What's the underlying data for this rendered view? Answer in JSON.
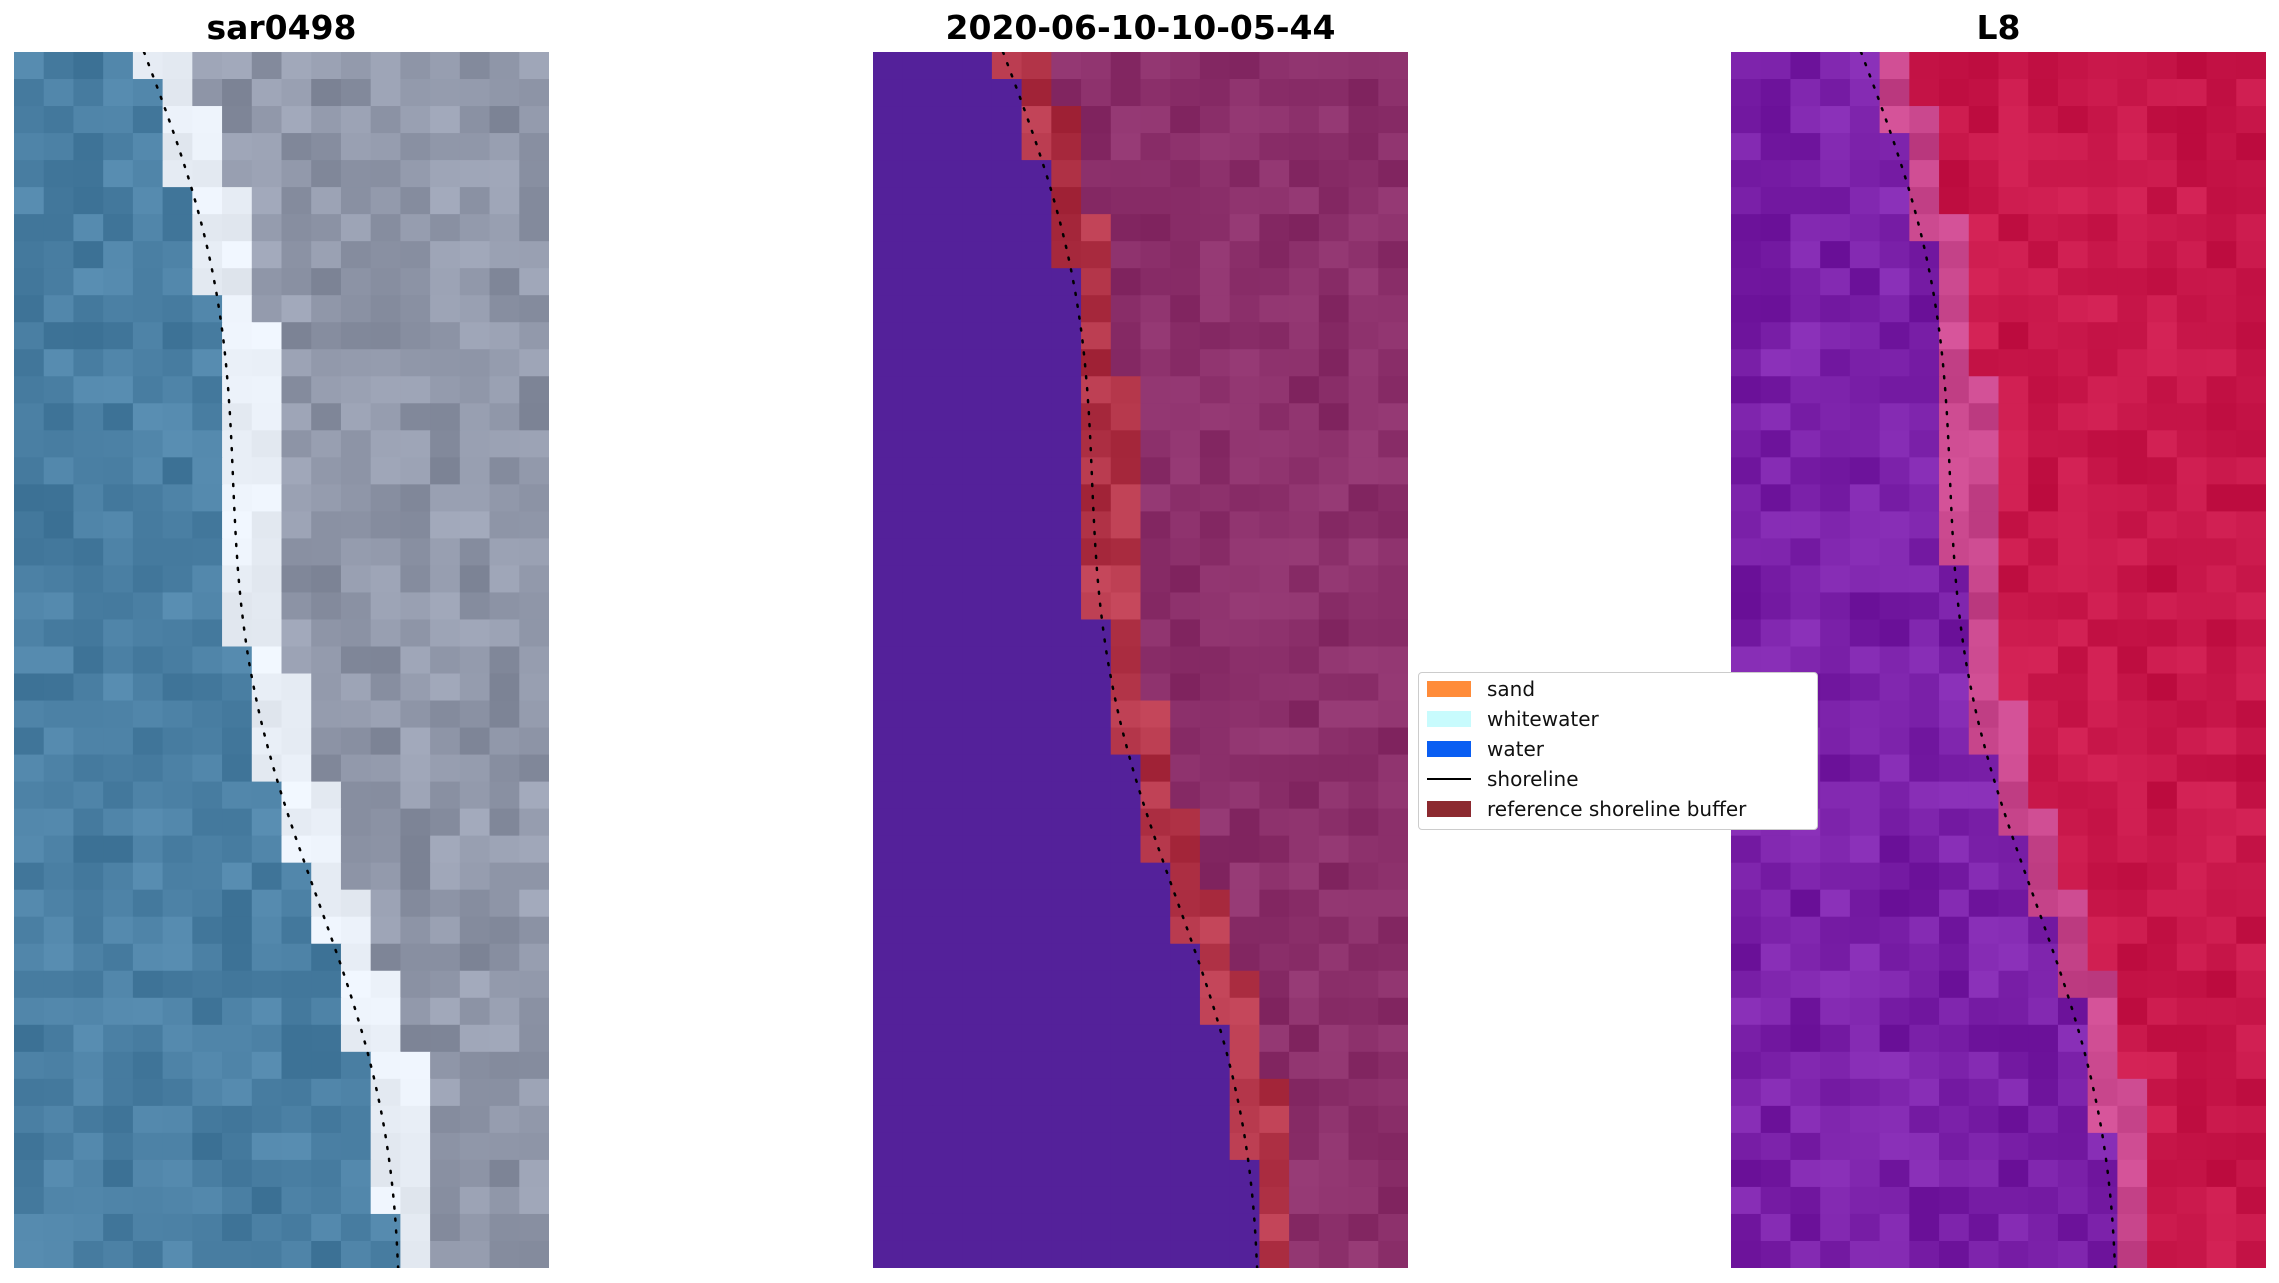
{
  "panels": [
    {
      "title": "sar0498",
      "kind": "rgb"
    },
    {
      "title": "2020-06-10-10-05-44",
      "kind": "classified"
    },
    {
      "title": "L8",
      "kind": "falsecolor"
    }
  ],
  "legend": {
    "items": [
      {
        "label": "sand",
        "type": "patch",
        "color": "#ff8c3a"
      },
      {
        "label": "whitewater",
        "type": "patch",
        "color": "#c8fbfd"
      },
      {
        "label": "water",
        "type": "patch",
        "color": "#0a5ef2"
      },
      {
        "label": "shoreline",
        "type": "line",
        "color": "#000000"
      },
      {
        "label": "reference shoreline buffer",
        "type": "patch",
        "color": "#8c2a30"
      }
    ]
  },
  "colors": {
    "rgb_water": "#4a7fa3",
    "rgb_whitewater": "#e8eef6",
    "rgb_land": "#8f96a8",
    "class_water": "#54219a",
    "class_land": "#8b2f6a",
    "class_buffer": "#b23448",
    "false_water": "#7a20a8",
    "false_land": "#c8174a"
  }
}
